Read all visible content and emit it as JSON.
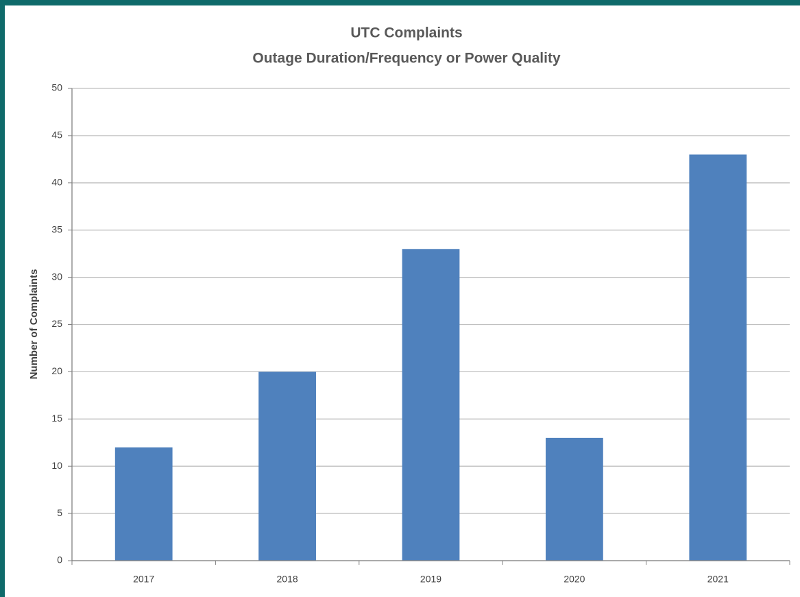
{
  "chart_data": {
    "type": "bar",
    "title": "UTC Complaints",
    "subtitle": "Outage Duration/Frequency or Power Quality",
    "y_label": "Number of Complaints",
    "categories": [
      "2017",
      "2018",
      "2019",
      "2020",
      "2021"
    ],
    "values": [
      12,
      20,
      33,
      13,
      43
    ],
    "color": "#4f81bd",
    "ylim": [
      0,
      50
    ],
    "yticks": [
      0,
      5,
      10,
      15,
      20,
      25,
      30,
      35,
      40,
      45,
      50
    ],
    "grid": true
  }
}
